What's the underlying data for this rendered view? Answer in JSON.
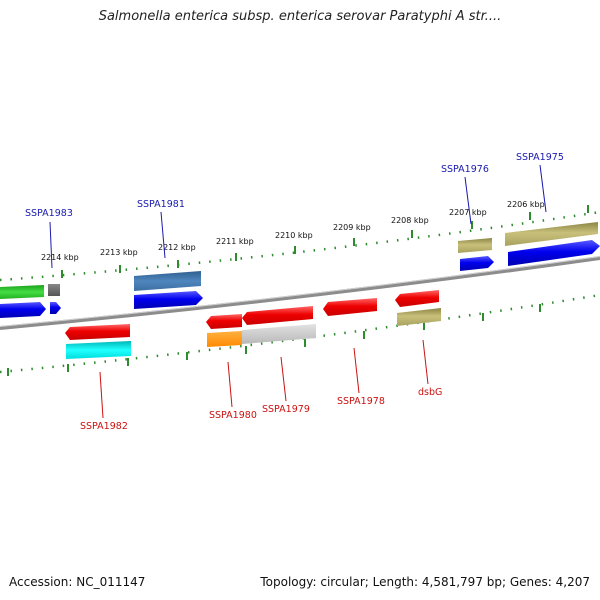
{
  "title": "Salmonella enterica subsp. enterica serovar Paratyphi A str....",
  "footer": {
    "accession": "Accession: NC_011147",
    "summary": "Topology: circular; Length: 4,581,797 bp; Genes: 4,207"
  },
  "ruler_labels": [
    "2214 kbp",
    "2213 kbp",
    "2212 kbp",
    "2211 kbp",
    "2210 kbp",
    "2209 kbp",
    "2208 kbp",
    "2207 kbp",
    "2206 kbp"
  ],
  "genes_top": [
    "SSPA1983",
    "SSPA1981",
    "SSPA1976",
    "SSPA1975"
  ],
  "genes_bottom": [
    "SSPA1982",
    "SSPA1980",
    "SSPA1979",
    "SSPA1978",
    "dsbG"
  ],
  "colors": {
    "ruler": "#2e8b2e",
    "backbone": "#888888",
    "label_top": "#1a1ab0",
    "label_bottom": "#cc1111"
  }
}
